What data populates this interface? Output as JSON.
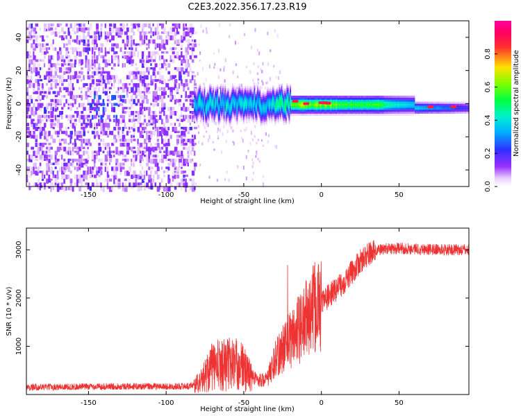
{
  "title": "C2E3.2022.356.17.23.R19",
  "chart_data": [
    {
      "type": "heatmap",
      "xlabel": "Height of straight line (km)",
      "ylabel": "Frequency (Hz)",
      "xlim": [
        -190,
        95
      ],
      "ylim": [
        -50,
        50
      ],
      "xticks": [
        -150,
        -100,
        -50,
        0,
        50
      ],
      "yticks": [
        -40,
        -20,
        0,
        20,
        40
      ],
      "colorbar": {
        "label": "Normalized spectral amplitude",
        "range": [
          0.0,
          1.0
        ],
        "ticks": [
          0.0,
          0.2,
          0.4,
          0.6,
          0.8
        ],
        "colormap": "rainbow (white-purple-blue-cyan-green-yellow-red-magenta)"
      },
      "features": {
        "noise_region_x": [
          -190,
          -82
        ],
        "signal_band_x": [
          -82,
          95
        ],
        "signal_center_freq": 0,
        "peak_amplitude_near_x": [
          -20,
          10
        ]
      },
      "grid": false
    },
    {
      "type": "line",
      "xlabel": "Height of straight line (km)",
      "ylabel": "SNR (10 * v/v)",
      "xlim": [
        -190,
        95
      ],
      "ylim": [
        0,
        3450
      ],
      "xticks": [
        -150,
        -100,
        -50,
        0,
        50
      ],
      "yticks": [
        1000,
        2000,
        3000
      ],
      "color": "#ee3333",
      "series": [
        {
          "x": [
            -190,
            -160,
            -130,
            -100,
            -85,
            -78,
            -72,
            -65,
            -58,
            -52,
            -48,
            -45,
            -42,
            -38,
            -35,
            -30,
            -25,
            -20,
            -15,
            -10,
            -5,
            0,
            5,
            10,
            15,
            20,
            25,
            30,
            35,
            40,
            50,
            60,
            70,
            80,
            95
          ],
          "values": [
            150,
            160,
            170,
            165,
            175,
            250,
            550,
            620,
            650,
            600,
            480,
            380,
            320,
            300,
            310,
            700,
            950,
            1150,
            1350,
            1550,
            1750,
            1900,
            2050,
            2200,
            2350,
            2550,
            2750,
            2900,
            2980,
            3020,
            3030,
            3020,
            3010,
            3000,
            3000
          ]
        }
      ],
      "grid": false
    }
  ]
}
